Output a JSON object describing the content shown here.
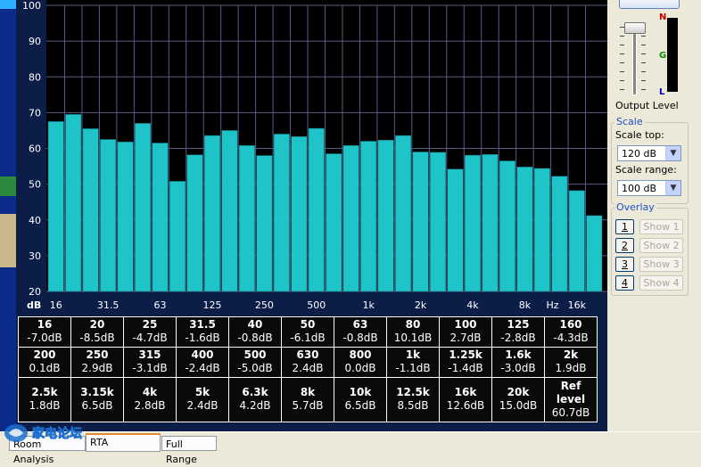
{
  "chart_data": {
    "type": "bar",
    "ylim": [
      20,
      100
    ],
    "yticks": [
      "100",
      "90",
      "80",
      "70",
      "60",
      "50",
      "40",
      "30",
      "20"
    ],
    "xunit_label": "dB",
    "xaxis_labels": [
      "16",
      "31.5",
      "63",
      "125",
      "250",
      "500",
      "1k",
      "2k",
      "4k",
      "8k",
      "Hz",
      "16k"
    ],
    "values": [
      67.5,
      69.5,
      65.5,
      62.5,
      61.8,
      67,
      61.5,
      50.8,
      58.2,
      63.6,
      65,
      60.8,
      58,
      64,
      63.3,
      65.6,
      58.5,
      60.8,
      62,
      62.3,
      63.6,
      59,
      58.9,
      54.2,
      58.1,
      58.3,
      56.5,
      54.8,
      54.4,
      52.2,
      48.2,
      41.2
    ],
    "colors": {
      "bar": "#1fc4c8",
      "bar_edge": "#0a6f72",
      "grid": "#5a5a88",
      "background": "#000000"
    }
  },
  "table": {
    "rows": [
      [
        [
          "16",
          "-7.0dB"
        ],
        [
          "20",
          "-8.5dB"
        ],
        [
          "25",
          "-4.7dB"
        ],
        [
          "31.5",
          "-1.6dB"
        ],
        [
          "40",
          "-0.8dB"
        ],
        [
          "50",
          "-6.1dB"
        ],
        [
          "63",
          "-0.8dB"
        ],
        [
          "80",
          "10.1dB"
        ],
        [
          "100",
          "2.7dB"
        ],
        [
          "125",
          "-2.8dB"
        ],
        [
          "160",
          "-4.3dB"
        ]
      ],
      [
        [
          "200",
          "0.1dB"
        ],
        [
          "250",
          "2.9dB"
        ],
        [
          "315",
          "-3.1dB"
        ],
        [
          "400",
          "-2.4dB"
        ],
        [
          "500",
          "-5.0dB"
        ],
        [
          "630",
          "2.4dB"
        ],
        [
          "800",
          "0.0dB"
        ],
        [
          "1k",
          "-1.1dB"
        ],
        [
          "1.25k",
          "-1.4dB"
        ],
        [
          "1.6k",
          "-3.0dB"
        ],
        [
          "2k",
          "1.9dB"
        ]
      ],
      [
        [
          "2.5k",
          "1.8dB"
        ],
        [
          "3.15k",
          "6.5dB"
        ],
        [
          "4k",
          "2.8dB"
        ],
        [
          "5k",
          "2.4dB"
        ],
        [
          "6.3k",
          "4.2dB"
        ],
        [
          "8k",
          "5.7dB"
        ],
        [
          "10k",
          "6.5dB"
        ],
        [
          "12.5k",
          "8.5dB"
        ],
        [
          "16k",
          "12.6dB"
        ],
        [
          "20k",
          "15.0dB"
        ],
        [
          "Ref level",
          "60.7dB"
        ]
      ]
    ]
  },
  "panel": {
    "meter_labels": {
      "n": "N",
      "g": "G",
      "l": "L"
    },
    "output_level_label": "Output Level",
    "scale_group_title": "Scale",
    "scale_top_label": "Scale top:",
    "scale_top_value": "120 dB",
    "scale_range_label": "Scale range:",
    "scale_range_value": "100 dB",
    "overlay_group_title": "Overlay",
    "overlay_buttons": [
      "1",
      "2",
      "3",
      "4"
    ],
    "show_buttons": [
      "Show 1",
      "Show 2",
      "Show 3",
      "Show 4"
    ]
  },
  "tabs": [
    "Room Analysis",
    "RTA",
    "Full Range"
  ],
  "watermark": "家电论坛"
}
